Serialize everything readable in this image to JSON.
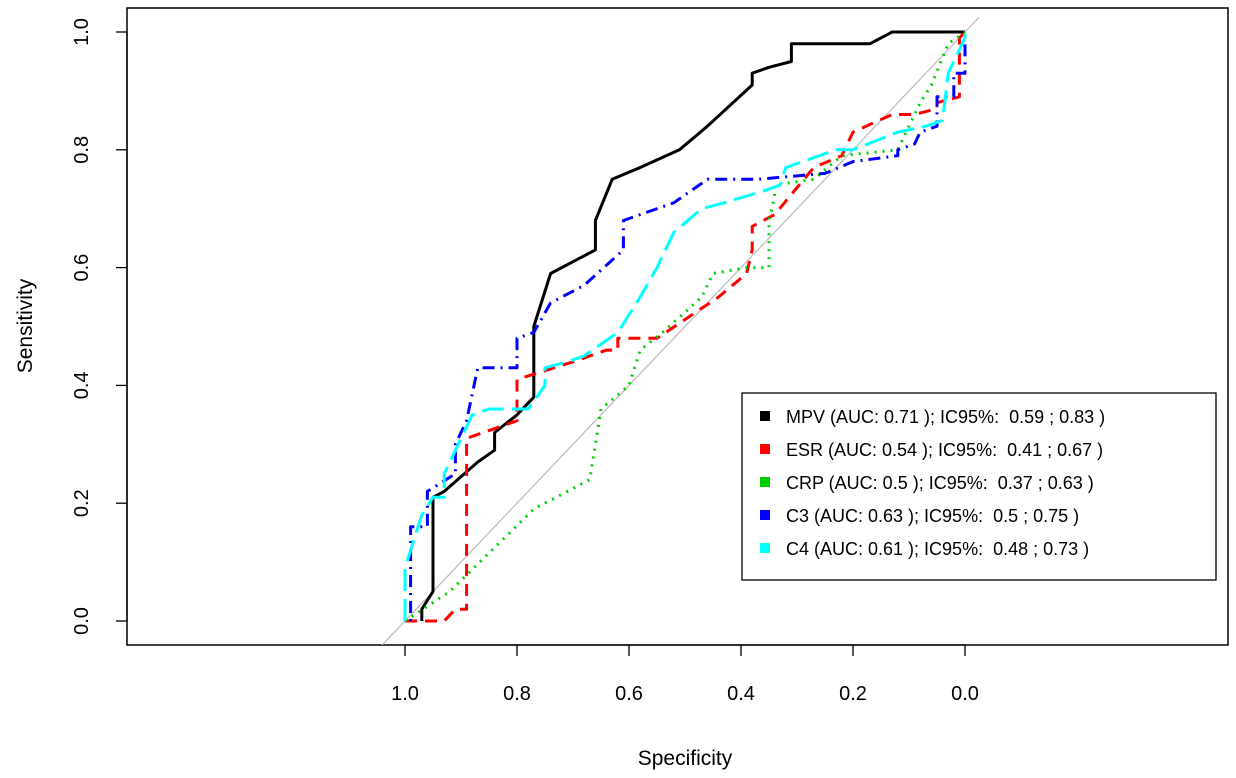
{
  "chart_data": {
    "type": "line",
    "title": "",
    "xlabel": "Specificity",
    "ylabel": "Sensitivity",
    "xlim": [
      1.0,
      0.0
    ],
    "ylim": [
      0.0,
      1.0
    ],
    "x_reversed": true,
    "x_ticks": [
      "1.0",
      "0.8",
      "0.6",
      "0.4",
      "0.2",
      "0.0"
    ],
    "y_ticks": [
      "0.0",
      "0.2",
      "0.4",
      "0.6",
      "0.8",
      "1.0"
    ],
    "grid": false,
    "reference_line": "diagonal",
    "reference_color": "#bebebe",
    "legend_position": "bottom-right",
    "series": [
      {
        "name": "MPV (AUC: 0.71 ); IC95%:  0.59 ; 0.83 )",
        "color": "#000000",
        "dash": "solid",
        "points": [
          [
            0.97,
            0.0
          ],
          [
            0.97,
            0.02
          ],
          [
            0.95,
            0.05
          ],
          [
            0.95,
            0.21
          ],
          [
            0.93,
            0.22
          ],
          [
            0.87,
            0.27
          ],
          [
            0.84,
            0.29
          ],
          [
            0.84,
            0.32
          ],
          [
            0.8,
            0.35
          ],
          [
            0.77,
            0.38
          ],
          [
            0.77,
            0.5
          ],
          [
            0.74,
            0.59
          ],
          [
            0.7,
            0.61
          ],
          [
            0.66,
            0.63
          ],
          [
            0.66,
            0.68
          ],
          [
            0.63,
            0.75
          ],
          [
            0.58,
            0.77
          ],
          [
            0.51,
            0.8
          ],
          [
            0.46,
            0.84
          ],
          [
            0.38,
            0.91
          ],
          [
            0.38,
            0.93
          ],
          [
            0.35,
            0.94
          ],
          [
            0.31,
            0.95
          ],
          [
            0.31,
            0.98
          ],
          [
            0.17,
            0.98
          ],
          [
            0.13,
            1.0
          ],
          [
            0.0,
            1.0
          ]
        ]
      },
      {
        "name": "ESR (AUC: 0.54 ); IC95%:  0.41 ; 0.67 )",
        "color": "#ff0000",
        "dash": "dashed",
        "points": [
          [
            1.0,
            0.0
          ],
          [
            0.93,
            0.0
          ],
          [
            0.91,
            0.02
          ],
          [
            0.89,
            0.02
          ],
          [
            0.89,
            0.25
          ],
          [
            0.89,
            0.31
          ],
          [
            0.8,
            0.34
          ],
          [
            0.8,
            0.41
          ],
          [
            0.7,
            0.44
          ],
          [
            0.64,
            0.46
          ],
          [
            0.62,
            0.46
          ],
          [
            0.62,
            0.48
          ],
          [
            0.55,
            0.48
          ],
          [
            0.44,
            0.55
          ],
          [
            0.39,
            0.59
          ],
          [
            0.38,
            0.63
          ],
          [
            0.38,
            0.67
          ],
          [
            0.34,
            0.69
          ],
          [
            0.27,
            0.77
          ],
          [
            0.22,
            0.79
          ],
          [
            0.2,
            0.83
          ],
          [
            0.13,
            0.86
          ],
          [
            0.09,
            0.86
          ],
          [
            0.05,
            0.87
          ],
          [
            0.05,
            0.88
          ],
          [
            0.01,
            0.89
          ],
          [
            0.01,
            0.99
          ],
          [
            0.0,
            1.0
          ]
        ]
      },
      {
        "name": "CRP (AUC: 0.5 ); IC95%:  0.37 ; 0.63 )",
        "color": "#00cd00",
        "dash": "dotted",
        "points": [
          [
            1.0,
            0.0
          ],
          [
            0.92,
            0.05
          ],
          [
            0.77,
            0.19
          ],
          [
            0.67,
            0.24
          ],
          [
            0.66,
            0.3
          ],
          [
            0.65,
            0.36
          ],
          [
            0.6,
            0.4
          ],
          [
            0.58,
            0.46
          ],
          [
            0.54,
            0.49
          ],
          [
            0.47,
            0.55
          ],
          [
            0.45,
            0.59
          ],
          [
            0.39,
            0.6
          ],
          [
            0.35,
            0.6
          ],
          [
            0.35,
            0.68
          ],
          [
            0.34,
            0.72
          ],
          [
            0.34,
            0.74
          ],
          [
            0.27,
            0.75
          ],
          [
            0.22,
            0.79
          ],
          [
            0.12,
            0.8
          ],
          [
            0.1,
            0.84
          ],
          [
            0.08,
            0.88
          ],
          [
            0.06,
            0.91
          ],
          [
            0.03,
            0.98
          ],
          [
            0.0,
            1.0
          ]
        ]
      },
      {
        "name": "C3 (AUC: 0.63 ); IC95%:  0.5 ; 0.75 )",
        "color": "#0000ff",
        "dash": "dotdash",
        "points": [
          [
            0.99,
            0.0
          ],
          [
            0.99,
            0.01
          ],
          [
            0.99,
            0.16
          ],
          [
            0.96,
            0.16
          ],
          [
            0.96,
            0.22
          ],
          [
            0.91,
            0.25
          ],
          [
            0.91,
            0.3
          ],
          [
            0.89,
            0.34
          ],
          [
            0.87,
            0.43
          ],
          [
            0.8,
            0.43
          ],
          [
            0.8,
            0.48
          ],
          [
            0.77,
            0.49
          ],
          [
            0.74,
            0.54
          ],
          [
            0.68,
            0.57
          ],
          [
            0.61,
            0.63
          ],
          [
            0.61,
            0.68
          ],
          [
            0.52,
            0.71
          ],
          [
            0.46,
            0.75
          ],
          [
            0.37,
            0.75
          ],
          [
            0.25,
            0.76
          ],
          [
            0.2,
            0.78
          ],
          [
            0.12,
            0.79
          ],
          [
            0.12,
            0.8
          ],
          [
            0.09,
            0.81
          ],
          [
            0.08,
            0.83
          ],
          [
            0.05,
            0.84
          ],
          [
            0.05,
            0.89
          ],
          [
            0.02,
            0.89
          ],
          [
            0.02,
            0.93
          ],
          [
            0.0,
            0.93
          ],
          [
            0.0,
            1.0
          ]
        ]
      },
      {
        "name": "C4 (AUC: 0.61 ); IC95%:  0.48 ; 0.73 )",
        "color": "#00ffff",
        "dash": "longdash",
        "points": [
          [
            1.0,
            0.0
          ],
          [
            1.0,
            0.09
          ],
          [
            0.97,
            0.18
          ],
          [
            0.95,
            0.21
          ],
          [
            0.93,
            0.21
          ],
          [
            0.93,
            0.25
          ],
          [
            0.88,
            0.35
          ],
          [
            0.85,
            0.36
          ],
          [
            0.78,
            0.36
          ],
          [
            0.75,
            0.4
          ],
          [
            0.75,
            0.43
          ],
          [
            0.71,
            0.44
          ],
          [
            0.68,
            0.45
          ],
          [
            0.62,
            0.49
          ],
          [
            0.58,
            0.55
          ],
          [
            0.55,
            0.6
          ],
          [
            0.52,
            0.66
          ],
          [
            0.47,
            0.7
          ],
          [
            0.43,
            0.71
          ],
          [
            0.36,
            0.73
          ],
          [
            0.33,
            0.74
          ],
          [
            0.32,
            0.77
          ],
          [
            0.23,
            0.8
          ],
          [
            0.2,
            0.8
          ],
          [
            0.12,
            0.83
          ],
          [
            0.07,
            0.84
          ],
          [
            0.04,
            0.85
          ],
          [
            0.03,
            0.93
          ],
          [
            0.0,
            0.99
          ],
          [
            0.0,
            1.0
          ]
        ]
      }
    ]
  }
}
